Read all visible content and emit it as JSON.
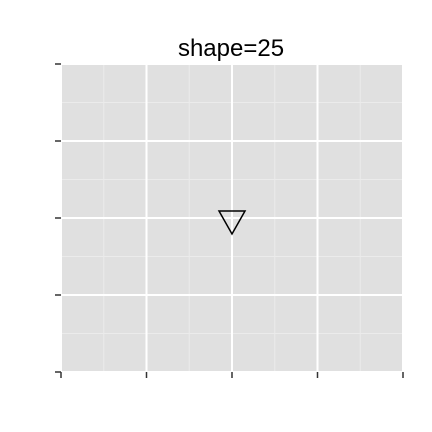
{
  "chart_data": {
    "type": "scatter",
    "title": "shape=25",
    "xlabel": "",
    "ylabel": "",
    "xlim": [
      0,
      4
    ],
    "ylim": [
      0,
      4
    ],
    "x_ticks": [
      0,
      1,
      2,
      3,
      4
    ],
    "y_ticks": [
      0,
      1,
      2,
      3,
      4
    ],
    "grid": true,
    "legend": "none",
    "points": [
      {
        "x": 2,
        "y": 2,
        "shape": "triangle-down",
        "fill": "none",
        "stroke": "#000000"
      }
    ],
    "colors": {
      "panel_background": "#e0e0e0",
      "major_grid": "#ffffff",
      "minor_grid": "#ebebeb",
      "tick": "#333333"
    }
  }
}
